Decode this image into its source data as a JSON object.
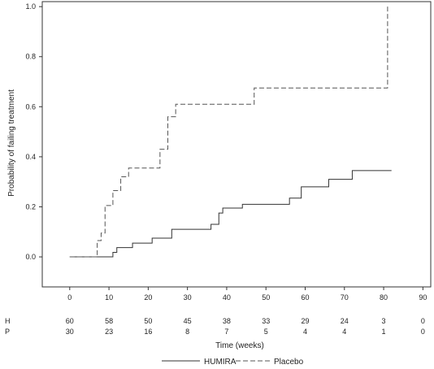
{
  "chart_data": {
    "type": "line",
    "title": "",
    "xlabel": "Time (weeks)",
    "ylabel": "Probability of failing treatment",
    "xlim": [
      -7,
      92
    ],
    "ylim": [
      -0.12,
      1.02
    ],
    "x_ticks": [
      0,
      10,
      20,
      30,
      40,
      50,
      60,
      70,
      80,
      90
    ],
    "x_tick_labels": [
      "0",
      "10",
      "20",
      "30",
      "40",
      "50",
      "60",
      "70",
      "80",
      "90"
    ],
    "y_ticks": [
      0.0,
      0.2,
      0.4,
      0.6,
      0.8,
      1.0
    ],
    "y_tick_labels": [
      "0.0",
      "0.2",
      "0.4",
      "0.6",
      "0.8",
      "1.0"
    ],
    "grid": false,
    "legend_position": "bottom",
    "series": [
      {
        "name": "HUMIRA",
        "line_style": "solid",
        "color": "#333333",
        "x": [
          0,
          11,
          12,
          16,
          21,
          26,
          36,
          38,
          39,
          44,
          56,
          59,
          66,
          72,
          80,
          82
        ],
        "y": [
          0.0,
          0.018,
          0.037,
          0.055,
          0.075,
          0.11,
          0.13,
          0.175,
          0.195,
          0.21,
          0.235,
          0.28,
          0.31,
          0.345,
          0.345,
          0.345
        ]
      },
      {
        "name": "Placebo",
        "line_style": "dashed",
        "color": "#555555",
        "x": [
          0,
          7,
          8,
          9,
          11,
          13,
          15,
          20,
          23,
          25,
          27,
          30,
          46,
          47,
          79,
          81
        ],
        "y": [
          0.0,
          0.065,
          0.095,
          0.205,
          0.265,
          0.32,
          0.355,
          0.355,
          0.43,
          0.56,
          0.61,
          0.61,
          0.61,
          0.675,
          0.675,
          1.0
        ]
      }
    ]
  },
  "risk_table": {
    "x": [
      0,
      10,
      20,
      30,
      40,
      50,
      60,
      70,
      80,
      90
    ],
    "rows": [
      {
        "label": "H",
        "values": [
          "60",
          "58",
          "50",
          "45",
          "38",
          "33",
          "29",
          "24",
          "3",
          "0"
        ]
      },
      {
        "label": "P",
        "values": [
          "30",
          "23",
          "16",
          "8",
          "7",
          "5",
          "4",
          "4",
          "1",
          "0"
        ]
      }
    ]
  },
  "colors": {
    "axis": "#333333",
    "text": "#222222",
    "background": "#ffffff"
  }
}
